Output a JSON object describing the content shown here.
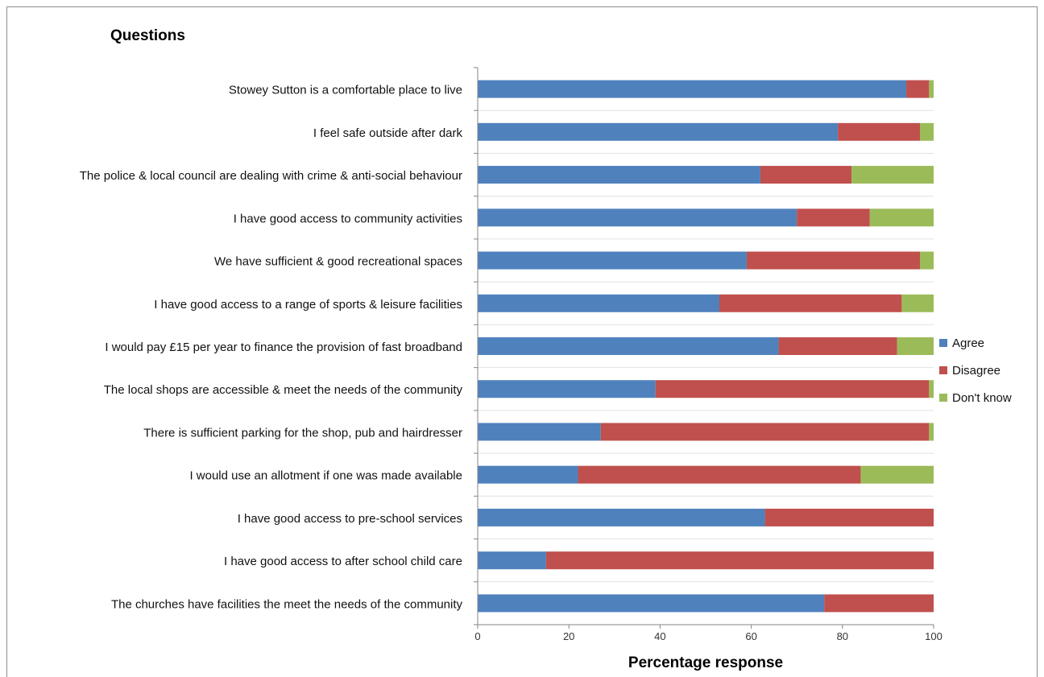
{
  "chart_data": {
    "type": "bar",
    "stacked": true,
    "orientation": "horizontal",
    "title": "Questions",
    "xlabel": "Percentage response",
    "ylabel": "",
    "xlim": [
      0,
      100
    ],
    "x_ticks": [
      0,
      20,
      40,
      60,
      80,
      100
    ],
    "grid": false,
    "legend_position": "right",
    "categories": [
      "Stowey Sutton is a comfortable place to live",
      "I feel safe outside after dark",
      "The police & local council are dealing with crime & anti-social behaviour",
      "I have good access to community activities",
      "We have sufficient & good recreational spaces",
      "I have good access to a range of sports & leisure facilities",
      "I would pay £15 per year to finance the provision of fast broadband ",
      "The local shops are accessible & meet the needs of the community",
      "There is sufficient parking for the shop, pub and hairdresser",
      "I would use an allotment if one was made available",
      "I have good access to pre-school services",
      "I have good access to after school child care",
      "The churches have facilities the meet the needs of the community"
    ],
    "series": [
      {
        "name": "Agree",
        "color": "#4f81bd",
        "values": [
          94,
          79,
          62,
          70,
          59,
          53,
          66,
          39,
          27,
          22,
          63,
          15,
          76
        ]
      },
      {
        "name": "Disagree",
        "color": "#c0504d",
        "values": [
          5,
          18,
          20,
          16,
          38,
          40,
          26,
          60,
          72,
          62,
          37,
          85,
          24
        ]
      },
      {
        "name": "Don't know",
        "color": "#9bbb59",
        "values": [
          1,
          3,
          18,
          14,
          3,
          7,
          8,
          1,
          1,
          16,
          0,
          0,
          0
        ]
      }
    ]
  }
}
